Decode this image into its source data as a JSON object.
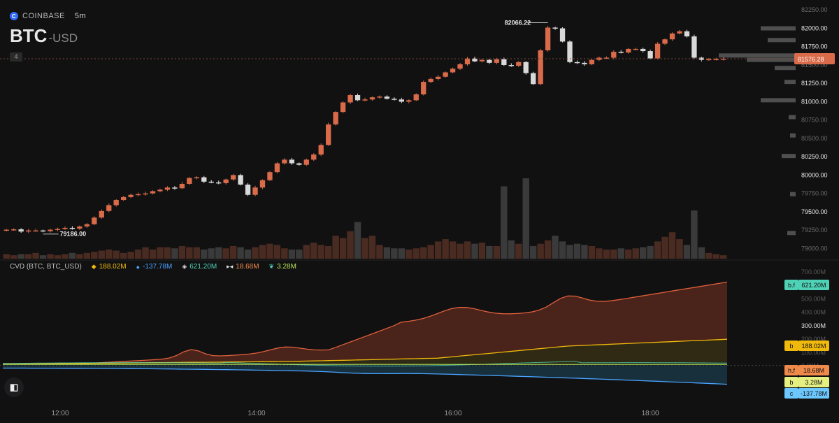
{
  "header": {
    "exchange": "COINBASE",
    "timeframe": "5m",
    "symbol": "BTC",
    "quote": "-USD",
    "badge": "4"
  },
  "indicator": {
    "name": "CVD (BTC, BTC_USD)",
    "items": [
      {
        "icon": "binance-icon",
        "value": "188.02M",
        "color": "#f0b90b"
      },
      {
        "icon": "coinbase-icon",
        "value": "-137.78M",
        "color": "#4aa3ff"
      },
      {
        "icon": "bitfinex-futures-icon",
        "value": "621.20M",
        "color": "#4fd1b5"
      },
      {
        "icon": "huobi-futures-icon",
        "value": "18.68M",
        "color": "#f08a4b"
      },
      {
        "icon": "bybit-icon",
        "value": "3.28M",
        "color": "#b5e35a"
      }
    ]
  },
  "chart_data": [
    {
      "type": "candlestick",
      "x_labels": [
        "12:00",
        "14:00",
        "16:00",
        "18:00"
      ],
      "y_ticks": [
        79000,
        79250,
        79500,
        79750,
        80000,
        80250,
        80500,
        80750,
        81000,
        81250,
        81500,
        81750,
        82000,
        82250
      ],
      "y_tick_labels": [
        "79000.00",
        "79250.00",
        "79500.00",
        "79750.00",
        "80000.00",
        "80250.00",
        "80500.00",
        "80750.00",
        "81000.00",
        "81250.00",
        "81500.00",
        "81750.00",
        "82000.00",
        "82250.00"
      ],
      "ylim": [
        78850,
        82300
      ],
      "current_price": "81576.28",
      "high_label": "82066.22",
      "low_label": "79186.00",
      "closes": [
        79245,
        79250,
        79220,
        79235,
        79235,
        79225,
        79245,
        79255,
        79270,
        79260,
        79290,
        79320,
        79410,
        79500,
        79580,
        79650,
        79690,
        79720,
        79730,
        79740,
        79770,
        79790,
        79820,
        79810,
        79870,
        79950,
        79960,
        79900,
        79890,
        79880,
        79930,
        79990,
        79860,
        79720,
        79820,
        79920,
        80030,
        80150,
        80200,
        80150,
        80130,
        80200,
        80270,
        80400,
        80680,
        80850,
        80980,
        81080,
        81010,
        81020,
        81050,
        81060,
        81030,
        81020,
        80990,
        81010,
        81090,
        81260,
        81300,
        81330,
        81390,
        81440,
        81500,
        81580,
        81540,
        81560,
        81520,
        81570,
        81490,
        81480,
        81530,
        81380,
        81230,
        81690,
        82000,
        81990,
        81810,
        81530,
        81520,
        81500,
        81560,
        81590,
        81590,
        81670,
        81660,
        81710,
        81710,
        81680,
        81580,
        81780,
        81840,
        81920,
        81950,
        81880,
        81590,
        81560,
        81570,
        81570,
        81576
      ],
      "volume": [
        8,
        6,
        8,
        8,
        10,
        6,
        8,
        6,
        8,
        10,
        8,
        10,
        12,
        14,
        16,
        14,
        10,
        12,
        16,
        20,
        16,
        20,
        20,
        18,
        22,
        20,
        20,
        16,
        18,
        20,
        18,
        22,
        20,
        16,
        20,
        24,
        26,
        24,
        18,
        16,
        16,
        24,
        28,
        24,
        22,
        40,
        36,
        48,
        64,
        36,
        40,
        24,
        20,
        18,
        18,
        16,
        18,
        20,
        24,
        30,
        34,
        30,
        26,
        30,
        26,
        28,
        22,
        22,
        126,
        32,
        26,
        140,
        22,
        26,
        32,
        40,
        30,
        24,
        26,
        24,
        22,
        18,
        16,
        16,
        18,
        16,
        18,
        20,
        22,
        30,
        38,
        46,
        34,
        24,
        84,
        20,
        10,
        8,
        6
      ],
      "volume_tick_labels": [
        "79186.00"
      ]
    },
    {
      "type": "area",
      "name": "CVD",
      "y_ticks": [
        -200,
        100,
        300,
        500,
        700
      ],
      "y_tick_labels": [
        "-200.00M",
        "100.00M",
        "300.00M",
        "500.00M",
        "700.00M"
      ],
      "series": [
        {
          "name": "b.f",
          "value_label": "621.20M",
          "color": "#4fd1b5",
          "end": 621.2
        },
        {
          "name": "b",
          "value_label": "188.02M",
          "color": "#f0b90b",
          "end": 188.02
        },
        {
          "name": "h.f",
          "value_label": "18.68M",
          "color": "#f08a4b",
          "end": 18.68
        },
        {
          "name": "b",
          "value_label": "3.28M",
          "color": "#b5e35a",
          "end": 3.28
        },
        {
          "name": "c",
          "value_label": "-137.78M",
          "color": "#4aa3ff",
          "end": -137.78
        }
      ],
      "extra_tick_labels": [
        "600.00M",
        "400.00M",
        "200.00M",
        "0.00M",
        "-100.00M"
      ]
    }
  ],
  "colors": {
    "up": "#d96b4a",
    "down": "#d9d9d9",
    "bg": "#111112"
  }
}
